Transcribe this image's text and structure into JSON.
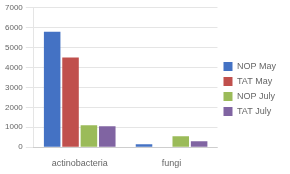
{
  "chart_data": {
    "type": "bar",
    "categories": [
      "actinobacteria",
      "fungi"
    ],
    "series": [
      {
        "name": "NOP May",
        "color": "#4472C4",
        "values": [
          5800,
          150
        ]
      },
      {
        "name": "TAT May",
        "color": "#C0504D",
        "values": [
          4500,
          0
        ]
      },
      {
        "name": "NOP July",
        "color": "#9BBB59",
        "values": [
          1100,
          550
        ]
      },
      {
        "name": "TAT July",
        "color": "#8064A2",
        "values": [
          1050,
          300
        ]
      }
    ],
    "ylim": [
      0,
      7000
    ],
    "yticks": [
      0,
      1000,
      2000,
      3000,
      4000,
      5000,
      6000,
      7000
    ],
    "grid": true,
    "legend": "right"
  }
}
